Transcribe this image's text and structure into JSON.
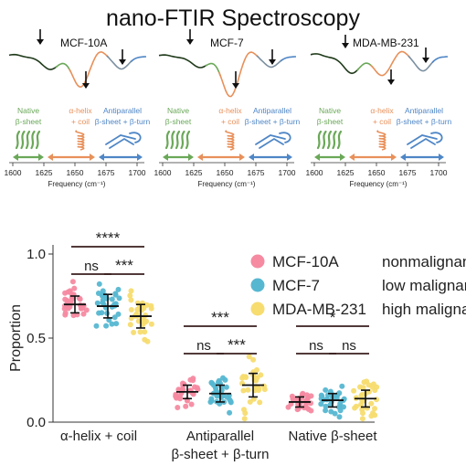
{
  "title": "nano-FTIR Spectroscopy",
  "colors": {
    "native": "#6aa858",
    "helix": "#e8905a",
    "antiparallel": "#4f86c6",
    "mcf10a": "#f58aa1",
    "mcf7": "#56b7d1",
    "mdamb231": "#f7dc6f"
  },
  "spectra": {
    "freq_ticks": [
      "1600",
      "1625",
      "1650",
      "1675",
      "1700"
    ],
    "xlabel": "Frequency (cm⁻¹)",
    "band_labels": {
      "native": [
        "Native",
        "β-sheet"
      ],
      "helix": [
        "α-helix",
        "+ coil"
      ],
      "antiparallel": [
        "Antiparallel",
        "β-sheet + β-turn"
      ]
    },
    "panels": [
      {
        "name": "MCF-10A",
        "dip1": 0.3,
        "dip2": 0.75,
        "dip3": 0.3
      },
      {
        "name": "MCF-7",
        "dip1": 0.25,
        "dip2": 1.0,
        "dip3": 0.25
      },
      {
        "name": "MDA-MB-231",
        "dip1": 0.4,
        "dip2": 0.45,
        "dip3": 0.35
      }
    ]
  },
  "chart_data": {
    "type": "scatter",
    "ylabel": "Proportion",
    "ylim": [
      0.0,
      1.0
    ],
    "yticks": [
      "0.0",
      "0.5",
      "1.0"
    ],
    "categories": [
      "α-helix + coil",
      "Antiparallel\nβ-sheet + β-turn",
      "Native β-sheet"
    ],
    "legend": [
      {
        "name": "MCF-10A",
        "desc": "nonmalignant"
      },
      {
        "name": "MCF-7",
        "desc": "low malignancy"
      },
      {
        "name": "MDA-MB-231",
        "desc": "high malignancy"
      }
    ],
    "series": [
      {
        "name": "MCF-10A",
        "means": [
          0.7,
          0.18,
          0.12
        ],
        "sd": [
          0.05,
          0.04,
          0.03
        ]
      },
      {
        "name": "MCF-7",
        "means": [
          0.69,
          0.17,
          0.13
        ],
        "sd": [
          0.07,
          0.05,
          0.04
        ]
      },
      {
        "name": "MDA-MB-231",
        "means": [
          0.63,
          0.22,
          0.14
        ],
        "sd": [
          0.07,
          0.07,
          0.05
        ]
      }
    ],
    "significance": [
      {
        "group": 0,
        "pairs": [
          {
            "a": 0,
            "b": 2,
            "label": "****"
          },
          {
            "a": 0,
            "b": 1,
            "label": "ns"
          },
          {
            "a": 1,
            "b": 2,
            "label": "***"
          }
        ]
      },
      {
        "group": 1,
        "pairs": [
          {
            "a": 0,
            "b": 2,
            "label": "***"
          },
          {
            "a": 0,
            "b": 1,
            "label": "ns"
          },
          {
            "a": 1,
            "b": 2,
            "label": "***"
          }
        ]
      },
      {
        "group": 2,
        "pairs": [
          {
            "a": 0,
            "b": 2,
            "label": "*"
          },
          {
            "a": 0,
            "b": 1,
            "label": "ns"
          },
          {
            "a": 1,
            "b": 2,
            "label": "ns"
          }
        ]
      }
    ]
  }
}
